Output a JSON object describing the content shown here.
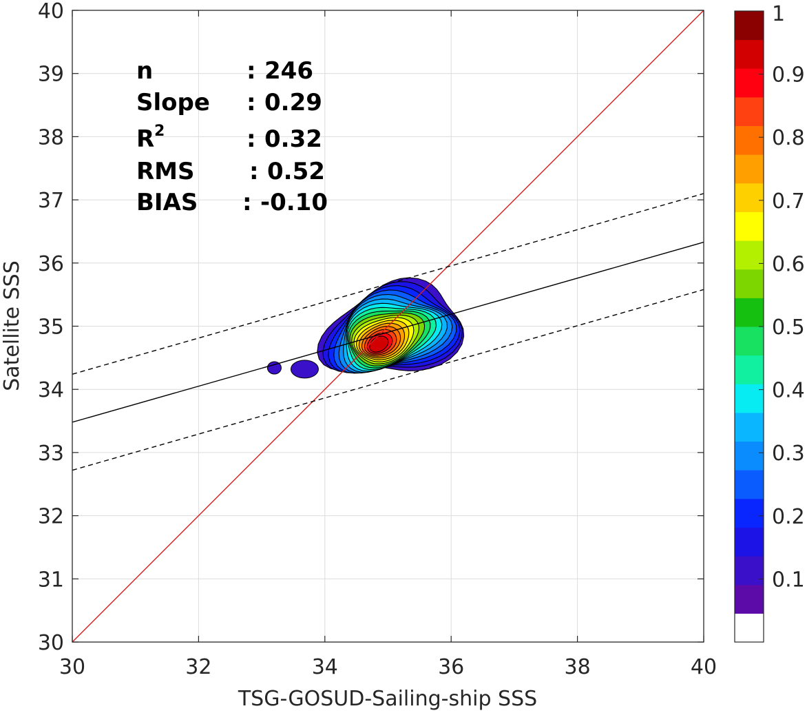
{
  "chart_data": {
    "type": "contour",
    "xlabel": "TSG-GOSUD-Sailing-ship SSS",
    "ylabel": "Satellite SSS",
    "xlim": [
      30,
      40
    ],
    "ylim": [
      30,
      40
    ],
    "x_ticks": [
      "30",
      "32",
      "34",
      "36",
      "38",
      "40"
    ],
    "y_ticks": [
      "30",
      "31",
      "32",
      "33",
      "34",
      "35",
      "36",
      "37",
      "38",
      "39",
      "40"
    ],
    "grid": true,
    "stats": [
      {
        "key": "n",
        "sep": ":",
        "value": "246"
      },
      {
        "key": "Slope",
        "sep": ":",
        "value": "0.29"
      },
      {
        "key": "R",
        "sup": "2",
        "sep": ":",
        "value": "0.32"
      },
      {
        "key": "RMS",
        "sep": ":",
        "value": "0.52"
      },
      {
        "key": "BIAS",
        "sep": ":",
        "value": "-0.10"
      }
    ],
    "lines": [
      {
        "name": "identity",
        "style": "solid",
        "color": "#d62020",
        "points": [
          [
            30,
            30
          ],
          [
            40,
            40
          ]
        ]
      },
      {
        "name": "fit",
        "style": "solid",
        "color": "#000000",
        "points": [
          [
            30,
            33.48
          ],
          [
            40,
            36.33
          ]
        ]
      },
      {
        "name": "fit-upper",
        "style": "dashed",
        "color": "#000000",
        "points": [
          [
            30,
            34.24
          ],
          [
            40,
            37.1
          ]
        ]
      },
      {
        "name": "fit-lower",
        "style": "dashed",
        "color": "#000000",
        "points": [
          [
            30,
            32.72
          ],
          [
            40,
            35.58
          ]
        ]
      }
    ],
    "density_peak": {
      "x": 34.85,
      "y": 34.72,
      "value": 1.0
    },
    "density_blobs": [
      {
        "x": 33.2,
        "y": 34.34,
        "level": 0.1
      },
      {
        "x": 33.68,
        "y": 34.32,
        "level": 0.1
      }
    ],
    "colorbar": {
      "range": [
        0,
        1
      ],
      "ticks": [
        "0.1",
        "0.2",
        "0.3",
        "0.4",
        "0.5",
        "0.6",
        "0.7",
        "0.8",
        "0.9",
        "1"
      ],
      "colors": [
        "#ffffff",
        "#5c0aa8",
        "#3a10c8",
        "#1c14e6",
        "#0a26ff",
        "#0a5cff",
        "#0a8cff",
        "#0ab6ff",
        "#06ecf2",
        "#10f0a0",
        "#18e060",
        "#16c010",
        "#7ed600",
        "#b2f000",
        "#ffff00",
        "#ffd000",
        "#ffa000",
        "#ff7000",
        "#ff4010",
        "#ff0010",
        "#d20000",
        "#8b0000"
      ]
    }
  }
}
